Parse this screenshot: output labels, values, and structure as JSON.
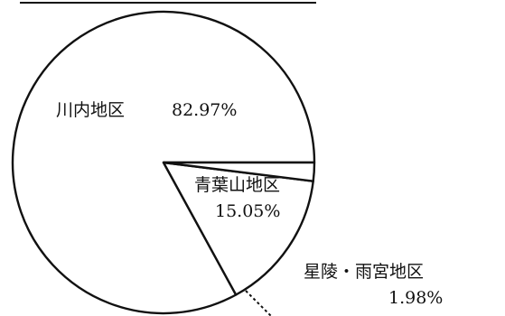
{
  "chart_data": {
    "type": "pie",
    "title": "",
    "slices": [
      {
        "label": "川内地区",
        "value": 82.97,
        "value_label": "82.97%"
      },
      {
        "label": "青葉山地区",
        "value": 15.05,
        "value_label": "15.05%"
      },
      {
        "label": "星陵・雨宮地区",
        "value": 1.98,
        "value_label": "1.98%"
      }
    ],
    "colors": {
      "fill": "#ffffff",
      "stroke": "#111111"
    }
  }
}
